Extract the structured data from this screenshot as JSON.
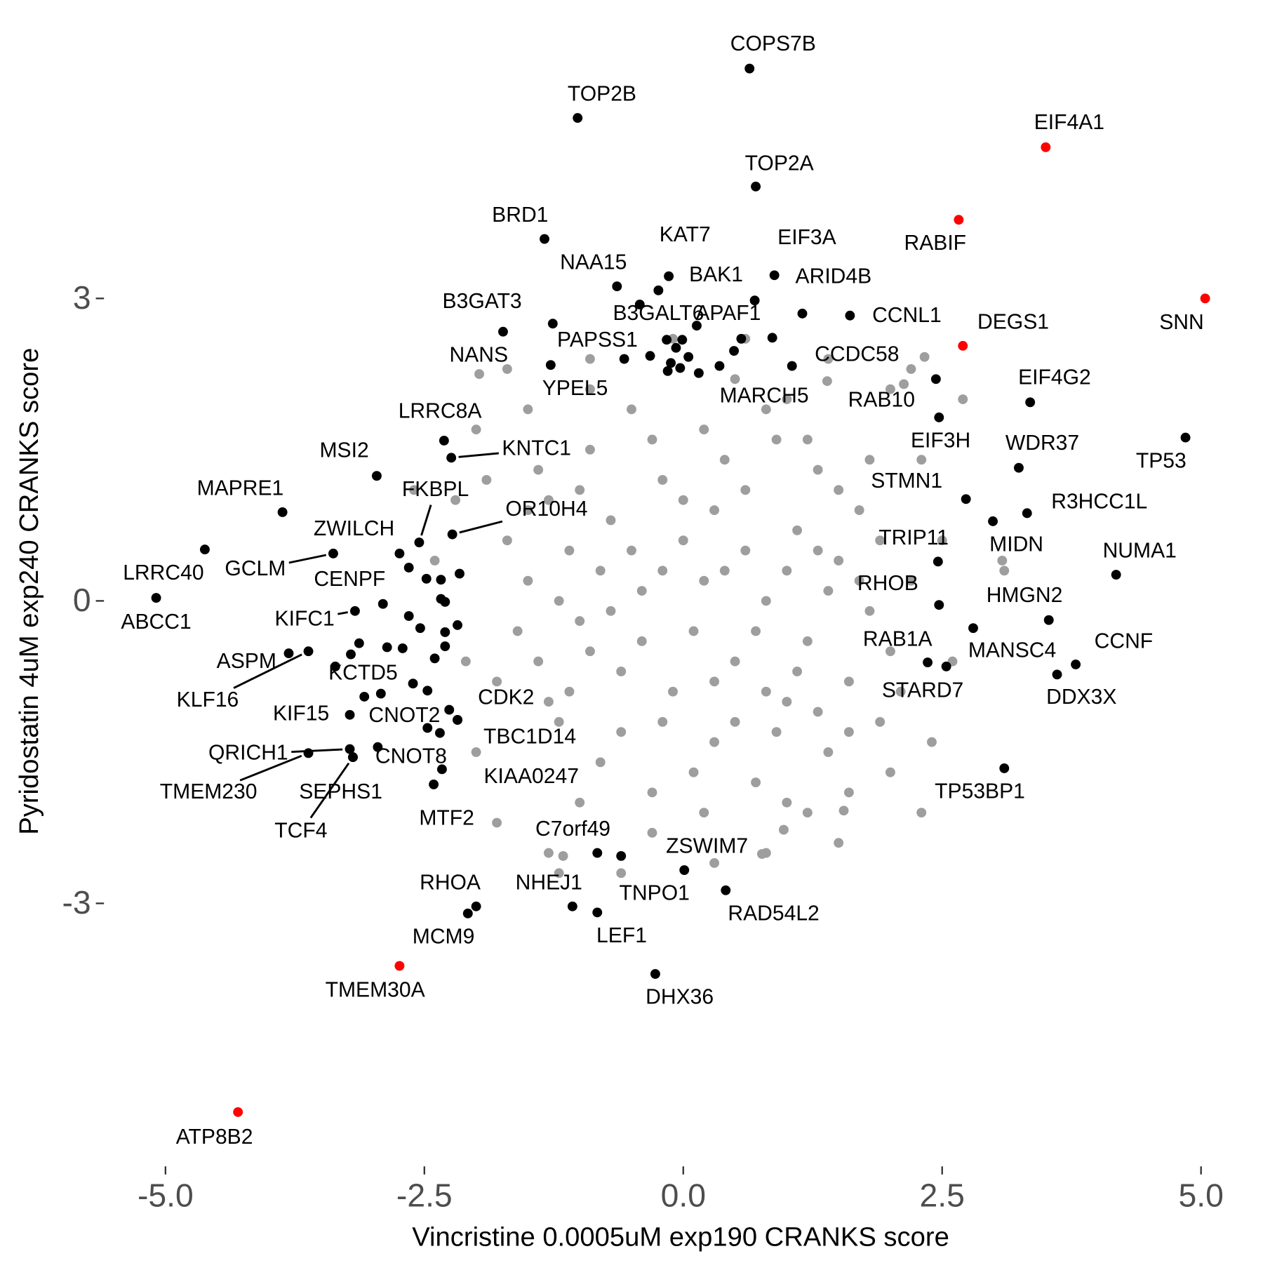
{
  "chart_data": {
    "type": "scatter",
    "x_label": "Vincristine 0.0005uM exp190 CRANKS score",
    "y_label": "Pyridostatin 4uM exp240 CRANKS score",
    "xlim": [
      -5.5,
      5.52
    ],
    "ylim": [
      -5.56,
      5.96
    ],
    "xticks": [
      {
        "value": -5,
        "label": "-5.0"
      },
      -2.5,
      {
        "value": 0,
        "label": "0.0"
      },
      2.5,
      {
        "value": 5,
        "label": "5.0"
      }
    ],
    "yticks": [
      -3,
      0,
      3
    ],
    "series": [
      {
        "color": "#9e9e9e",
        "x": [
          -1.5,
          -1.4,
          -1.3,
          -1.2,
          -1.1,
          -1.0,
          -0.9,
          -0.8,
          -0.7,
          -0.6,
          -0.5,
          -0.4,
          -0.3,
          -0.2,
          -0.1,
          0.0,
          0.1,
          0.2,
          0.3,
          0.4,
          0.5,
          0.6,
          0.7,
          0.8,
          0.9,
          1.0,
          1.1,
          1.2,
          1.3,
          1.4,
          1.5,
          1.6,
          1.7,
          1.8,
          1.9,
          2.0,
          -1.6,
          -1.5,
          -1.3,
          -1.2,
          -1.0,
          -0.9,
          -0.8,
          -0.6,
          -0.5,
          -0.4,
          -0.3,
          -0.2,
          0.0,
          0.1,
          0.2,
          0.3,
          0.4,
          0.5,
          0.6,
          0.7,
          0.8,
          0.9,
          1.0,
          1.1,
          1.2,
          1.3,
          1.4,
          1.5,
          1.6,
          1.7,
          -1.4,
          -1.1,
          -0.7,
          -0.2,
          0.3,
          0.8,
          1.3,
          -0.9,
          0.2,
          0.5,
          -0.3,
          1.0,
          1.0,
          -1.0,
          1.8,
          1.9,
          -1.7,
          -1.8,
          2.2,
          2.1,
          -2.0,
          -2.2,
          -2.4,
          -2.1,
          -2.0,
          -1.8,
          -1.3,
          -0.6,
          0.3,
          1.2,
          1.6,
          2.0,
          2.4,
          2.6,
          2.5,
          2.3,
          2.0,
          1.4,
          0.6,
          -0.1,
          -0.9,
          -1.5,
          -2.6,
          -1.9,
          2.2,
          2.7,
          3.1,
          -1.2,
          -1.7,
          1.5,
          2.3,
          0.8,
          -1.97,
          2.33,
          2.13,
          1.39,
          3.08,
          1.55,
          0.76,
          -1.16,
          0.97
        ],
        "values": [
          0.2,
          -0.6,
          1.0,
          -1.2,
          0.5,
          -0.2,
          1.5,
          -1.6,
          0.8,
          -0.7,
          1.9,
          0.1,
          -1.9,
          1.2,
          -0.9,
          0.6,
          -0.3,
          1.7,
          -1.4,
          0.3,
          -0.6,
          1.1,
          -1.8,
          0.0,
          1.6,
          -1.0,
          0.7,
          -0.4,
          1.3,
          -1.5,
          0.4,
          -0.8,
          0.9,
          -0.1,
          0.6,
          -0.5,
          -0.3,
          0.9,
          -1.0,
          0.0,
          1.1,
          -0.5,
          0.3,
          -1.3,
          0.5,
          -0.4,
          1.6,
          -1.2,
          1.0,
          -1.7,
          0.2,
          -0.8,
          1.4,
          -1.2,
          0.5,
          -0.3,
          1.9,
          -1.3,
          0.3,
          -0.7,
          1.6,
          -1.1,
          0.1,
          1.1,
          -1.3,
          0.2,
          1.3,
          -0.9,
          -0.1,
          0.3,
          0.9,
          -0.9,
          0.5,
          2.1,
          -2.1,
          2.2,
          -2.3,
          -2.0,
          2.0,
          -2.0,
          1.4,
          -1.2,
          0.6,
          -0.8,
          0.2,
          -0.9,
          1.7,
          1.0,
          0.4,
          -0.6,
          -1.5,
          -2.2,
          -2.5,
          -2.7,
          -2.6,
          -2.1,
          -1.9,
          -1.7,
          -1.4,
          -0.6,
          0.6,
          1.4,
          2.1,
          2.4,
          2.6,
          2.6,
          2.4,
          1.9,
          1.1,
          1.2,
          2.3,
          2.0,
          0.3,
          -2.7,
          2.3,
          -2.4,
          -2.1,
          -2.5,
          2.25,
          2.42,
          2.15,
          2.18,
          0.4,
          -2.08,
          -2.51,
          -2.53,
          -2.27
        ]
      },
      {
        "color": "#000000",
        "x": [
          -2.65,
          -2.48,
          -2.34,
          -2.16,
          -2.34,
          -2.3,
          -2.65,
          -2.54,
          -2.3,
          -2.18,
          -2.86,
          -2.71,
          -2.3,
          -2.4,
          -2.61,
          -2.47,
          -3.08,
          -2.47,
          -2.35,
          -2.18,
          -3.36,
          -3.13,
          -0.16,
          -0.01,
          -0.07,
          0.05,
          -0.12,
          -0.15,
          -0.03,
          0.15,
          -0.32,
          0.13,
          0.49,
          0.86,
          1.15
        ],
        "values": [
          0.33,
          0.22,
          0.21,
          0.27,
          0.02,
          -0.01,
          -0.15,
          -0.27,
          -0.31,
          -0.24,
          -0.46,
          -0.47,
          -0.45,
          -0.57,
          -0.82,
          -0.89,
          -0.95,
          -1.26,
          -1.31,
          -1.18,
          -0.65,
          -0.42,
          2.59,
          2.59,
          2.51,
          2.42,
          2.36,
          2.28,
          2.31,
          2.26,
          2.43,
          2.73,
          2.48,
          2.61,
          2.85
        ]
      },
      {
        "color": "#000000",
        "labels": [
          "COPS7B",
          "TOP2B",
          "TOP2A",
          "BRD1",
          "KAT7",
          "NAA15",
          "BAK1",
          "EIF3A",
          "ARID4B",
          "B3GAT3",
          "B3GALT6",
          "APAF1",
          "CCNL1",
          "NANS",
          "PAPSS1",
          "YPEL5",
          "CCDC58",
          "MARCH5",
          "RAB10",
          "EIF4G2",
          "EIF3H",
          "TP53",
          "LRRC8A",
          "KNTC1",
          "WDR37",
          "MSI2",
          "STMN1",
          "R3HCC1L",
          "MIDN",
          "MAPRE1",
          "OR10H4",
          "FKBPL",
          "LRRC40",
          "ZWILCH",
          "GCLM",
          "TRIP11",
          "NUMA1",
          "ABCC1",
          "CENPF",
          "RHOB",
          "KIFC1",
          "HMGN2",
          "MANSC4",
          "ASPM",
          "KLF16",
          "RAB1A",
          "STARD7",
          "CCNF",
          "DDX3X",
          "KCTD5",
          "KIF15",
          "CNOT2",
          "CDK2",
          "QRICH1",
          "TMEM230",
          "SEPHS1",
          "CNOT8",
          "TCF4",
          "TBC1D14",
          "KIAA0247",
          "MTF2",
          "TP53BP1",
          "C7orf49",
          "ZSWIM7",
          "TNPO1",
          "RAD54L2",
          "RHOA",
          "NHEJ1",
          "LEF1",
          "MCM9",
          "DHX36"
        ],
        "x": [
          0.64,
          -1.02,
          0.7,
          -1.34,
          -0.14,
          -0.64,
          -0.24,
          0.88,
          0.69,
          -1.26,
          -0.42,
          0.56,
          1.61,
          -1.74,
          -0.57,
          -1.28,
          1.05,
          0.35,
          2.44,
          3.35,
          2.47,
          4.85,
          -2.31,
          -2.24,
          3.24,
          -2.96,
          2.73,
          3.32,
          2.99,
          -3.87,
          -2.23,
          -2.55,
          -4.62,
          -2.74,
          -3.38,
          2.46,
          4.18,
          -5.09,
          -2.9,
          2.47,
          -3.17,
          3.53,
          2.8,
          -3.81,
          -3.62,
          2.36,
          2.54,
          3.79,
          3.61,
          -3.21,
          -3.22,
          -2.92,
          -2.26,
          -3.22,
          -3.62,
          -3.19,
          -2.95,
          -3.19,
          -2.18,
          -2.33,
          -2.41,
          3.1,
          -0.83,
          0.01,
          -0.6,
          0.41,
          -2.0,
          -1.07,
          -0.83,
          -2.08,
          -0.27
        ],
        "values": [
          5.28,
          4.79,
          4.11,
          3.59,
          3.22,
          3.12,
          3.08,
          3.23,
          2.98,
          2.75,
          2.94,
          2.6,
          2.83,
          2.67,
          2.4,
          2.34,
          2.33,
          2.33,
          2.2,
          1.97,
          1.82,
          1.62,
          1.59,
          1.42,
          1.32,
          1.24,
          1.01,
          0.87,
          0.79,
          0.88,
          0.66,
          0.58,
          0.51,
          0.47,
          0.47,
          0.39,
          0.26,
          0.03,
          -0.03,
          -0.04,
          -0.1,
          -0.19,
          -0.27,
          -0.52,
          -0.5,
          -0.61,
          -0.65,
          -0.63,
          -0.73,
          -0.53,
          -1.13,
          -0.92,
          -1.08,
          -1.47,
          -1.51,
          -1.55,
          -1.45,
          -1.55,
          -1.18,
          -1.67,
          -1.82,
          -1.66,
          -2.5,
          -2.67,
          -2.53,
          -2.87,
          -3.03,
          -3.03,
          -3.09,
          -3.1,
          -3.7
        ]
      },
      {
        "color": "#ff0000",
        "labels": [
          "EIF4A1",
          "RABIF",
          "SNN",
          "DEGS1",
          "TMEM30A",
          "ATP8B2"
        ],
        "x": [
          3.5,
          2.66,
          5.04,
          2.7,
          -2.74,
          -4.3
        ],
        "values": [
          4.5,
          3.78,
          3.0,
          2.53,
          -3.62,
          -5.07
        ]
      }
    ]
  }
}
